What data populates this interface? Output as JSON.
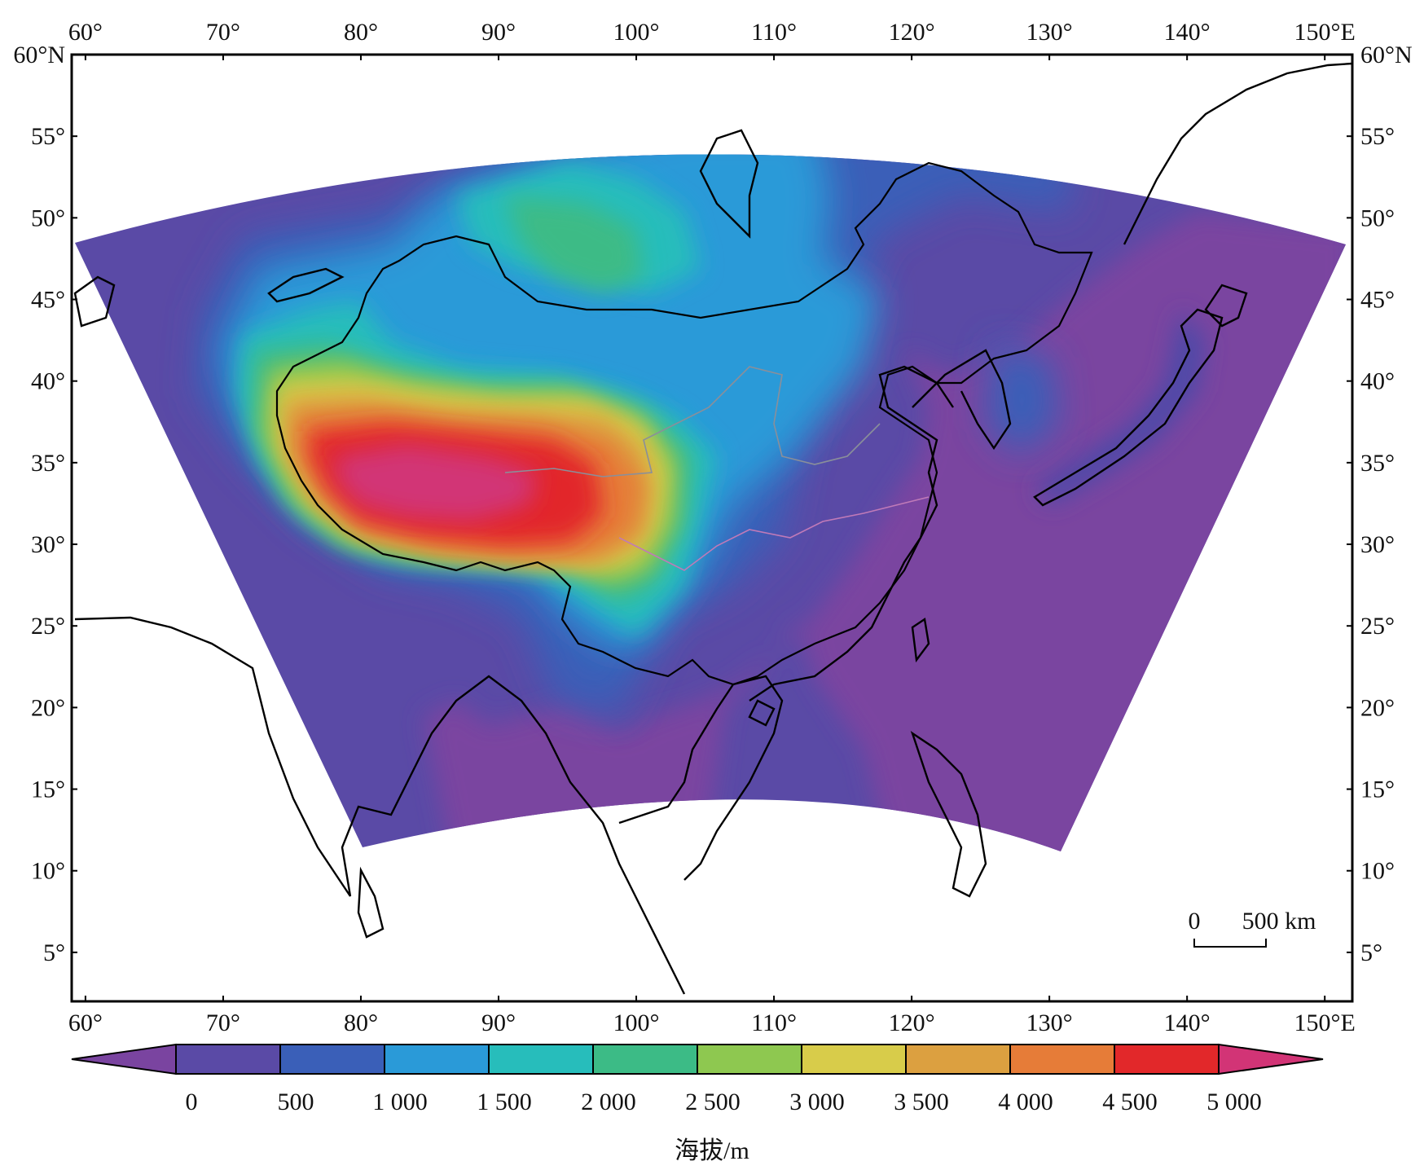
{
  "map": {
    "top_axis_labels": [
      "60°",
      "70°",
      "80°",
      "90°",
      "100°",
      "110°",
      "120°",
      "130°",
      "140°",
      "150°E"
    ],
    "bottom_axis_labels": [
      "60°",
      "70°",
      "80°",
      "90°",
      "100°",
      "110°",
      "120°",
      "130°",
      "140°",
      "150°E"
    ],
    "left_axis_labels": [
      "60°N",
      "55°",
      "50°",
      "45°",
      "40°",
      "35°",
      "30°",
      "25°",
      "20°",
      "15°",
      "10°",
      "5°"
    ],
    "right_axis_labels": [
      "60°N",
      "55°",
      "50°",
      "45°",
      "40°",
      "35°",
      "30°",
      "25°",
      "20°",
      "15°",
      "10°",
      "5°"
    ],
    "lon_range": [
      59,
      152
    ],
    "lat_range": [
      2,
      60
    ]
  },
  "scale_bar": {
    "start_label": "0",
    "end_label": "500 km"
  },
  "colorbar": {
    "tick_labels": [
      "0",
      "500",
      "1 000",
      "1 500",
      "2 000",
      "2 500",
      "3 000",
      "3 500",
      "4 000",
      "4 500",
      "5 000"
    ],
    "colors": [
      "#7a44a0",
      "#5a4aa6",
      "#3a5fb8",
      "#2a9ad8",
      "#27bdbb",
      "#3cbb86",
      "#8ec850",
      "#d8cc4a",
      "#dca040",
      "#e67c38",
      "#e2282a",
      "#d23476"
    ],
    "unit_label": "海拔/m"
  }
}
